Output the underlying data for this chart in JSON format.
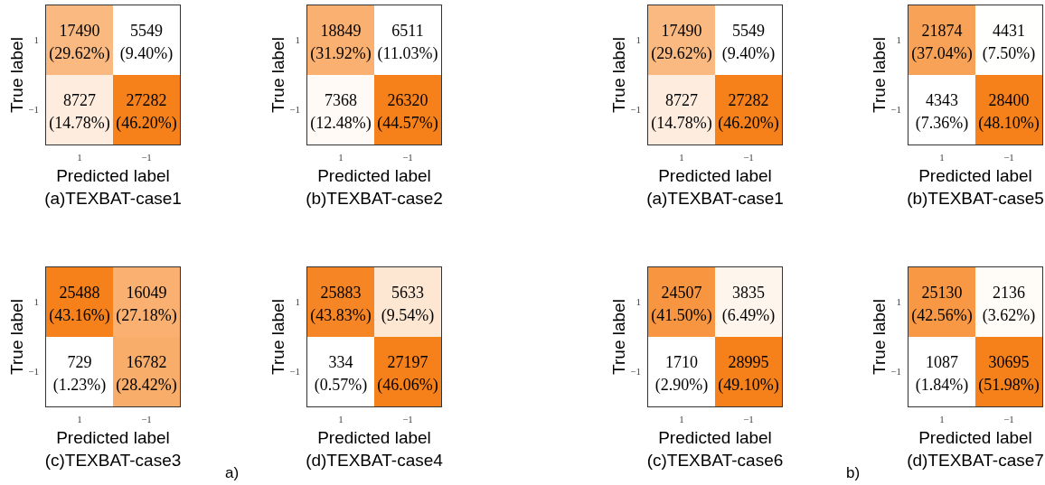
{
  "chart_data": [
    {
      "type": "heatmap",
      "data_labels": true,
      "title": "(a)TEXBAT-case1",
      "xlabel": "Predicted label",
      "ylabel": "True label",
      "categories": [
        "1",
        "−1"
      ],
      "y_categories": [
        "1",
        "−1"
      ],
      "cells": [
        [
          17490,
          5549
        ],
        [
          8727,
          27282
        ]
      ],
      "annotations": [
        "(29.62%)",
        "(9.40%)",
        "(14.78%)",
        "(46.20%)"
      ]
    },
    {
      "type": "heatmap",
      "data_labels": true,
      "title": "(b)TEXBAT-case2",
      "xlabel": "Predicted label",
      "ylabel": "True label",
      "categories": [
        "1",
        "−1"
      ],
      "y_categories": [
        "1",
        "−1"
      ],
      "cells": [
        [
          18849,
          6511
        ],
        [
          7368,
          26320
        ]
      ],
      "annotations": [
        "(31.92%)",
        "(11.03%)",
        "(12.48%)",
        "(44.57%)"
      ]
    },
    {
      "type": "heatmap",
      "data_labels": true,
      "title": "(c)TEXBAT-case3",
      "xlabel": "Predicted label",
      "ylabel": "True label",
      "categories": [
        "1",
        "−1"
      ],
      "y_categories": [
        "1",
        "−1"
      ],
      "cells": [
        [
          25488,
          16049
        ],
        [
          729,
          16782
        ]
      ],
      "annotations": [
        "(43.16%)",
        "(27.18%)",
        "(1.23%)",
        "(28.42%)"
      ]
    },
    {
      "type": "heatmap",
      "data_labels": true,
      "title": "(d)TEXBAT-case4",
      "xlabel": "Predicted label",
      "ylabel": "True label",
      "categories": [
        "1",
        "−1"
      ],
      "y_categories": [
        "1",
        "−1"
      ],
      "cells": [
        [
          25883,
          5633
        ],
        [
          334,
          27197
        ]
      ],
      "annotations": [
        "(43.83%)",
        "(9.54%)",
        "(0.57%)",
        "(46.06%)",
        "a)"
      ]
    },
    {
      "type": "heatmap",
      "data_labels": true,
      "title": "(a)TEXBAT-case1",
      "xlabel": "Predicted label",
      "ylabel": "True label",
      "categories": [
        "1",
        "−1"
      ],
      "y_categories": [
        "1",
        "−1"
      ],
      "cells": [
        [
          17490,
          5549
        ],
        [
          8727,
          27282
        ]
      ],
      "annotations": [
        "(29.62%)",
        "(9.40%)",
        "(14.78%)",
        "(46.20%)"
      ]
    },
    {
      "type": "heatmap",
      "data_labels": true,
      "title": "(b)TEXBAT-case5",
      "xlabel": "Predicted label",
      "ylabel": "True label",
      "categories": [
        "1",
        "−1"
      ],
      "y_categories": [
        "1",
        "−1"
      ],
      "cells": [
        [
          21874,
          4431
        ],
        [
          4343,
          28400
        ]
      ],
      "annotations": [
        "(37.04%)",
        "(7.50%)",
        "(7.36%)",
        "(48.10%)"
      ]
    },
    {
      "type": "heatmap",
      "data_labels": true,
      "title": "(c)TEXBAT-case6",
      "xlabel": "Predicted label",
      "ylabel": "True label",
      "categories": [
        "1",
        "−1"
      ],
      "y_categories": [
        "1",
        "−1"
      ],
      "cells": [
        [
          24507,
          3835
        ],
        [
          1710,
          28995
        ]
      ],
      "annotations": [
        "(41.50%)",
        "(6.49%)",
        "(2.90%)",
        "(49.10%)"
      ]
    },
    {
      "type": "heatmap",
      "data_labels": true,
      "title": "(d)TEXBAT-case7",
      "xlabel": "Predicted label",
      "ylabel": "True label",
      "categories": [
        "1",
        "−1"
      ],
      "y_categories": [
        "1",
        "−1"
      ],
      "cells": [
        [
          25130,
          2136
        ],
        [
          1087,
          30695
        ]
      ],
      "annotations": [
        "(42.56%)",
        "(3.62%)",
        "(1.84%)",
        "(51.98%)",
        "b)"
      ]
    }
  ]
}
